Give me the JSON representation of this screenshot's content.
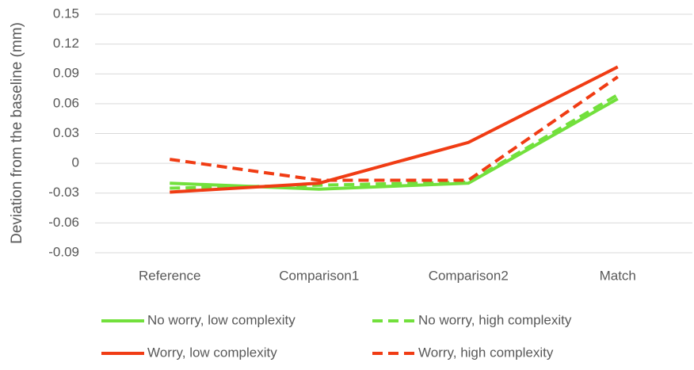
{
  "chart_data": {
    "type": "line",
    "y_label": "Deviation from the baseline (mm)",
    "categories": [
      "Reference",
      "Comparison1",
      "Comparison2",
      "Match"
    ],
    "series": [
      {
        "name": "No worry, low complexity",
        "color": "#72e03c",
        "dashed": false,
        "values": [
          -0.02,
          -0.026,
          -0.02,
          0.065
        ]
      },
      {
        "name": "No worry, high complexity",
        "color": "#72e03c",
        "dashed": true,
        "values": [
          -0.025,
          -0.022,
          -0.019,
          0.069
        ]
      },
      {
        "name": "Worry, low complexity",
        "color": "#f03c14",
        "dashed": false,
        "values": [
          -0.029,
          -0.02,
          0.021,
          0.097
        ]
      },
      {
        "name": "Worry, high complexity",
        "color": "#f03c14",
        "dashed": true,
        "values": [
          0.004,
          -0.017,
          -0.017,
          0.087
        ]
      }
    ],
    "ylim": [
      -0.09,
      0.15
    ],
    "yticks": [
      -0.09,
      -0.06,
      -0.03,
      0,
      0.03,
      0.06,
      0.09,
      0.12,
      0.15
    ],
    "grid": true
  }
}
